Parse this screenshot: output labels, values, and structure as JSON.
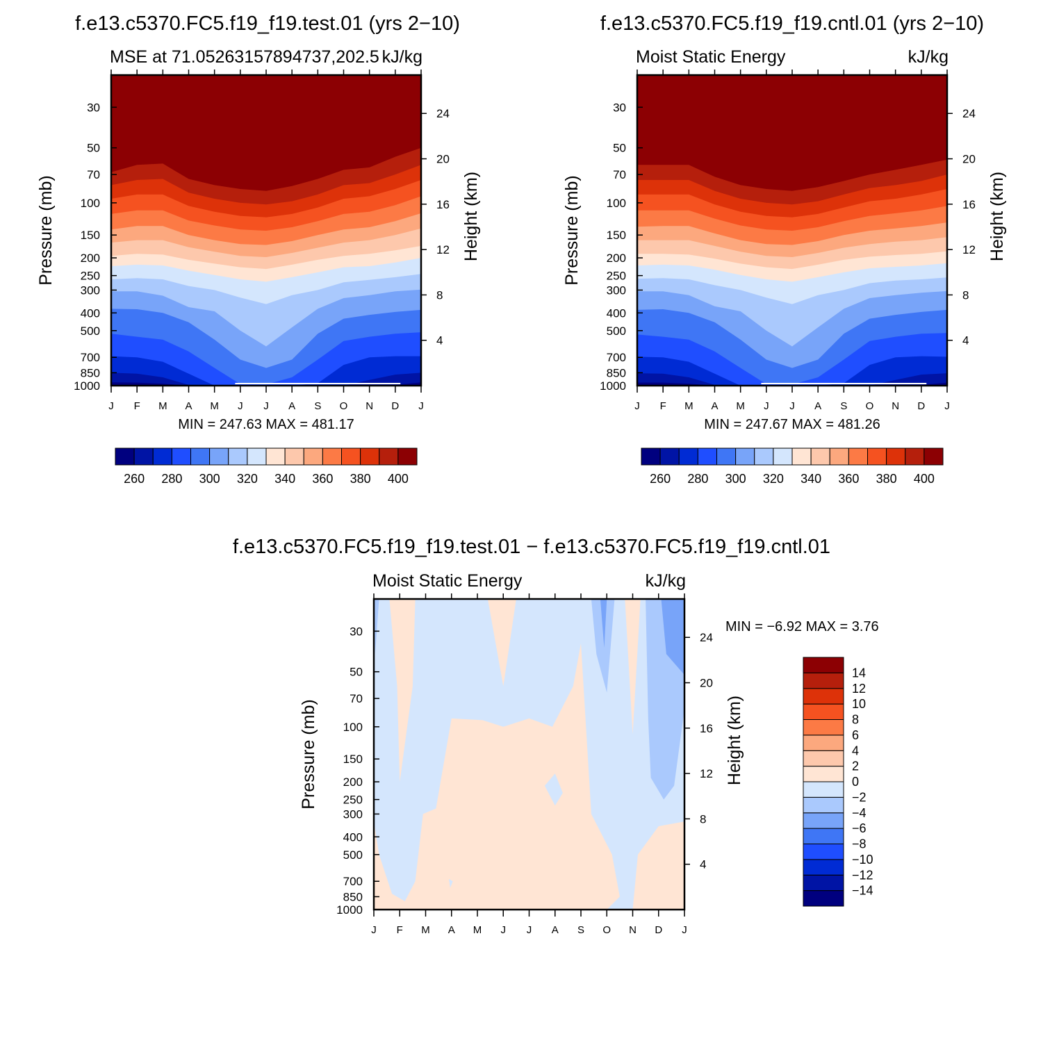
{
  "figure": {
    "title_left": "f.e13.c5370.FC5.f19_f19.test.01 (yrs 2−10)",
    "title_right": "f.e13.c5370.FC5.f19_f19.cntl.01 (yrs 2−10)",
    "title_diff": "f.e13.c5370.FC5.f19_f19.test.01 − f.e13.c5370.FC5.f19_f19.cntl.01"
  },
  "colors": {
    "mse_levels": [
      "#00007f",
      "#0014a5",
      "#002bd4",
      "#1f4eff",
      "#3f76f5",
      "#78a4f9",
      "#aac9fd",
      "#d4e6fd",
      "#ffe5d4",
      "#fdc8ac",
      "#fca87e",
      "#fc7a45",
      "#f55220",
      "#dd3209",
      "#b51f0c",
      "#8c0003"
    ],
    "diff_levels": [
      "#00007f",
      "#0014a5",
      "#002bd4",
      "#1f4eff",
      "#3f76f5",
      "#78a4f9",
      "#aac9fd",
      "#d4e6fd",
      "#ffe5d4",
      "#fdc8ac",
      "#fca87e",
      "#fc7a45",
      "#f55220",
      "#dd3209",
      "#b51f0c",
      "#8c0003"
    ]
  },
  "chart_data": [
    {
      "panel": "test",
      "type": "heatmap",
      "title_left": "MSE at 71.05263157894737,202.5",
      "title_right": "kJ/kg",
      "xlabel": "",
      "ylabel": "Pressure (mb)",
      "y2label": "Height (km)",
      "x_ticks": [
        "J",
        "F",
        "M",
        "A",
        "M",
        "J",
        "J",
        "A",
        "S",
        "O",
        "N",
        "D",
        "J"
      ],
      "y_ticks": [
        30,
        50,
        70,
        100,
        150,
        200,
        250,
        300,
        400,
        500,
        700,
        850,
        1000
      ],
      "y2_ticks": [
        24,
        20,
        16,
        12,
        8,
        4
      ],
      "ylim": [
        20,
        1000
      ],
      "min_label": "MIN = 247.63 MAX = 481.17",
      "contour_levels": [
        260,
        270,
        280,
        290,
        300,
        310,
        320,
        330,
        340,
        350,
        360,
        370,
        380,
        390,
        400
      ],
      "colorbar_labels": [
        "260",
        "280",
        "300",
        "320",
        "340",
        "360",
        "380",
        "400"
      ],
      "boundaries_hpa": {
        "months": [
          "J",
          "F",
          "M",
          "A",
          "M",
          "J",
          "J",
          "A",
          "S",
          "O",
          "N",
          "D",
          "J"
        ],
        "b400": [
          68,
          62,
          61,
          74,
          80,
          84,
          86,
          81,
          74,
          66,
          64,
          56,
          50
        ],
        "b390": [
          80,
          75,
          74,
          88,
          95,
          100,
          102,
          98,
          90,
          80,
          78,
          70,
          62
        ],
        "b380": [
          95,
          90,
          90,
          104,
          112,
          118,
          120,
          115,
          106,
          95,
          92,
          84,
          75
        ],
        "b370": [
          115,
          110,
          110,
          125,
          133,
          140,
          142,
          136,
          126,
          115,
          112,
          103,
          92
        ],
        "b360": [
          140,
          134,
          134,
          150,
          160,
          168,
          170,
          162,
          150,
          140,
          136,
          126,
          114
        ],
        "b350": [
          165,
          160,
          160,
          175,
          185,
          195,
          198,
          188,
          176,
          165,
          160,
          150,
          138
        ],
        "b340": [
          195,
          190,
          192,
          205,
          215,
          225,
          230,
          218,
          205,
          195,
          190,
          182,
          172
        ],
        "b330": [
          222,
          218,
          220,
          235,
          248,
          262,
          270,
          255,
          240,
          225,
          222,
          212,
          200
        ],
        "b320": [
          262,
          258,
          262,
          285,
          300,
          330,
          358,
          320,
          300,
          272,
          264,
          255,
          245
        ],
        "b310": [
          305,
          305,
          322,
          372,
          392,
          500,
          610,
          480,
          380,
          332,
          320,
          305,
          298
        ],
        "b300": [
          380,
          382,
          400,
          450,
          560,
          720,
          800,
          720,
          520,
          430,
          410,
          395,
          385
        ],
        "b290": [
          520,
          540,
          560,
          650,
          800,
          980,
          985,
          900,
          720,
          570,
          540,
          520,
          510
        ],
        "b280": [
          690,
          700,
          740,
          860,
          1000,
          1000,
          1000,
          1000,
          970,
          770,
          700,
          690,
          690
        ],
        "b270": [
          850,
          860,
          900,
          990,
          1000,
          1000,
          1000,
          1000,
          1000,
          1000,
          930,
          870,
          850
        ],
        "b260": [
          960,
          962,
          975,
          1000,
          1000,
          1000,
          1000,
          1000,
          1000,
          1000,
          1000,
          990,
          960
        ]
      }
    },
    {
      "panel": "cntl",
      "type": "heatmap",
      "title_left": "Moist Static Energy",
      "title_right": "kJ/kg",
      "xlabel": "",
      "ylabel": "Pressure (mb)",
      "y2label": "Height (km)",
      "x_ticks": [
        "J",
        "F",
        "M",
        "A",
        "M",
        "J",
        "J",
        "A",
        "S",
        "O",
        "N",
        "D",
        "J"
      ],
      "y_ticks": [
        30,
        50,
        70,
        100,
        150,
        200,
        250,
        300,
        400,
        500,
        700,
        850,
        1000
      ],
      "y2_ticks": [
        24,
        20,
        16,
        12,
        8,
        4
      ],
      "ylim": [
        20,
        1000
      ],
      "min_label": "MIN = 247.67 MAX = 481.26",
      "contour_levels": [
        260,
        270,
        280,
        290,
        300,
        310,
        320,
        330,
        340,
        350,
        360,
        370,
        380,
        390,
        400
      ],
      "colorbar_labels": [
        "260",
        "280",
        "300",
        "320",
        "340",
        "360",
        "380",
        "400"
      ],
      "boundaries_hpa": {
        "months": [
          "J",
          "F",
          "M",
          "A",
          "M",
          "J",
          "J",
          "A",
          "S",
          "O",
          "N",
          "D",
          "J"
        ],
        "b400": [
          62,
          62,
          62,
          72,
          80,
          84,
          86,
          82,
          76,
          70,
          66,
          62,
          58
        ],
        "b390": [
          75,
          75,
          75,
          86,
          95,
          100,
          102,
          98,
          90,
          83,
          80,
          76,
          70
        ],
        "b380": [
          90,
          90,
          90,
          102,
          112,
          118,
          120,
          115,
          106,
          98,
          95,
          90,
          84
        ],
        "b370": [
          110,
          110,
          110,
          122,
          133,
          140,
          142,
          136,
          126,
          118,
          114,
          110,
          104
        ],
        "b360": [
          135,
          134,
          134,
          147,
          160,
          168,
          170,
          162,
          150,
          142,
          138,
          134,
          128
        ],
        "b350": [
          160,
          160,
          160,
          172,
          185,
          195,
          198,
          188,
          176,
          168,
          163,
          160,
          154
        ],
        "b340": [
          190,
          190,
          192,
          202,
          215,
          225,
          230,
          218,
          205,
          197,
          193,
          190,
          184
        ],
        "b330": [
          220,
          218,
          220,
          232,
          248,
          262,
          270,
          255,
          240,
          228,
          224,
          220,
          214
        ],
        "b320": [
          260,
          258,
          262,
          282,
          300,
          330,
          358,
          320,
          300,
          275,
          266,
          262,
          256
        ],
        "b310": [
          305,
          305,
          320,
          368,
          392,
          500,
          610,
          480,
          380,
          332,
          320,
          310,
          304
        ],
        "b300": [
          385,
          382,
          400,
          450,
          560,
          720,
          800,
          720,
          520,
          430,
          410,
          395,
          385
        ],
        "b290": [
          525,
          540,
          560,
          650,
          800,
          980,
          985,
          900,
          720,
          570,
          540,
          520,
          515
        ],
        "b280": [
          695,
          700,
          740,
          860,
          1000,
          1000,
          1000,
          1000,
          970,
          770,
          700,
          690,
          695
        ],
        "b270": [
          855,
          860,
          900,
          990,
          1000,
          1000,
          1000,
          1000,
          1000,
          1000,
          930,
          870,
          855
        ],
        "b260": [
          962,
          962,
          975,
          1000,
          1000,
          1000,
          1000,
          1000,
          1000,
          1000,
          1000,
          990,
          962
        ]
      }
    },
    {
      "panel": "diff",
      "type": "heatmap",
      "title_left": "Moist Static Energy",
      "title_right": "kJ/kg",
      "xlabel": "",
      "ylabel": "Pressure (mb)",
      "y2label": "Height (km)",
      "x_ticks": [
        "J",
        "F",
        "M",
        "A",
        "M",
        "J",
        "J",
        "A",
        "S",
        "O",
        "N",
        "D",
        "J"
      ],
      "y_ticks": [
        30,
        50,
        70,
        100,
        150,
        200,
        250,
        300,
        400,
        500,
        700,
        850,
        1000
      ],
      "y2_ticks": [
        24,
        20,
        16,
        12,
        8,
        4
      ],
      "ylim": [
        20,
        1000
      ],
      "min_label": "MIN =   −6.92 MAX =    3.76",
      "contour_levels": [
        -14,
        -12,
        -10,
        -8,
        -6,
        -4,
        -2,
        0,
        2,
        4,
        6,
        8,
        10,
        12,
        14
      ],
      "colorbar_labels": [
        "14",
        "12",
        "10",
        "8",
        "6",
        "4",
        "2",
        "0",
        "−2",
        "−4",
        "−6",
        "−8",
        "−10",
        "−12",
        "−14"
      ],
      "regions": [
        {
          "value_range": [
            0,
            2
          ],
          "note": "positive tongue near F",
          "pts_month_hpa": [
            [
              0.6,
              20
            ],
            [
              1.6,
              20
            ],
            [
              1.5,
              60
            ],
            [
              1.0,
              200
            ],
            [
              0.9,
              60
            ]
          ]
        },
        {
          "value_range": [
            0,
            2
          ],
          "note": "upper positive wedge",
          "pts_month_hpa": [
            [
              4.4,
              20
            ],
            [
              5.5,
              20
            ],
            [
              5.0,
              60
            ]
          ]
        },
        {
          "value_range": [
            0,
            2
          ],
          "note": "main positive region",
          "pts_month_hpa": [
            [
              0,
              330
            ],
            [
              0.2,
              500
            ],
            [
              0.7,
              820
            ],
            [
              1.2,
              900
            ],
            [
              1.6,
              700
            ],
            [
              1.9,
              300
            ],
            [
              2.4,
              280
            ],
            [
              3.0,
              90
            ],
            [
              4.2,
              92
            ],
            [
              5.0,
              100
            ],
            [
              6.0,
              90
            ],
            [
              6.9,
              100
            ],
            [
              7.7,
              60
            ],
            [
              8.0,
              35
            ],
            [
              8.4,
              300
            ],
            [
              9.2,
              500
            ],
            [
              9.5,
              850
            ],
            [
              9.0,
              1000
            ],
            [
              0,
              1000
            ]
          ]
        },
        {
          "value_range": [
            0,
            2
          ],
          "note": "lower-right positive",
          "pts_month_hpa": [
            [
              10.0,
              1000
            ],
            [
              10.2,
              500
            ],
            [
              11.0,
              350
            ],
            [
              12,
              330
            ],
            [
              12,
              1000
            ]
          ]
        },
        {
          "value_range": [
            0,
            2
          ],
          "note": "positive spike near N",
          "pts_month_hpa": [
            [
              9.7,
              20
            ],
            [
              10.3,
              20
            ],
            [
              10.0,
              110
            ]
          ]
        },
        {
          "value_range": [
            -2,
            0
          ],
          "note": "negative pocket",
          "pts_month_hpa": [
            [
              6.6,
              210
            ],
            [
              7.0,
              180
            ],
            [
              7.3,
              230
            ],
            [
              7.0,
              270
            ]
          ]
        },
        {
          "value_range": [
            -2,
            0
          ],
          "note": "small pocket",
          "pts_month_hpa": [
            [
              2.9,
              680
            ],
            [
              3.05,
              700
            ],
            [
              2.95,
              760
            ]
          ]
        },
        {
          "value_range": [
            -4,
            -2
          ],
          "note": "upper-right negative",
          "pts_month_hpa": [
            [
              10.5,
              20
            ],
            [
              12,
              20
            ],
            [
              12,
              80
            ],
            [
              11.6,
              210
            ],
            [
              11.2,
              250
            ],
            [
              10.7,
              190
            ],
            [
              10.6,
              90
            ]
          ]
        },
        {
          "value_range": [
            -4,
            -2
          ],
          "note": "negative near O",
          "pts_month_hpa": [
            [
              8.4,
              20
            ],
            [
              9.3,
              20
            ],
            [
              9.0,
              65
            ],
            [
              8.6,
              40
            ]
          ]
        },
        {
          "value_range": [
            -6,
            -4
          ],
          "note": "upper-right stronger negative",
          "pts_month_hpa": [
            [
              11.1,
              20
            ],
            [
              12,
              20
            ],
            [
              12,
              52
            ],
            [
              11.3,
              40
            ]
          ]
        },
        {
          "value_range": [
            -6,
            -4
          ],
          "note": "sliver near O",
          "pts_month_hpa": [
            [
              8.75,
              20
            ],
            [
              9.0,
              20
            ],
            [
              8.9,
              37
            ]
          ]
        },
        {
          "value_range": [
            -4,
            -2
          ],
          "note": "sliver near J",
          "pts_month_hpa": [
            [
              0,
              20
            ],
            [
              0.2,
              20
            ],
            [
              0.05,
              40
            ]
          ]
        }
      ]
    }
  ]
}
